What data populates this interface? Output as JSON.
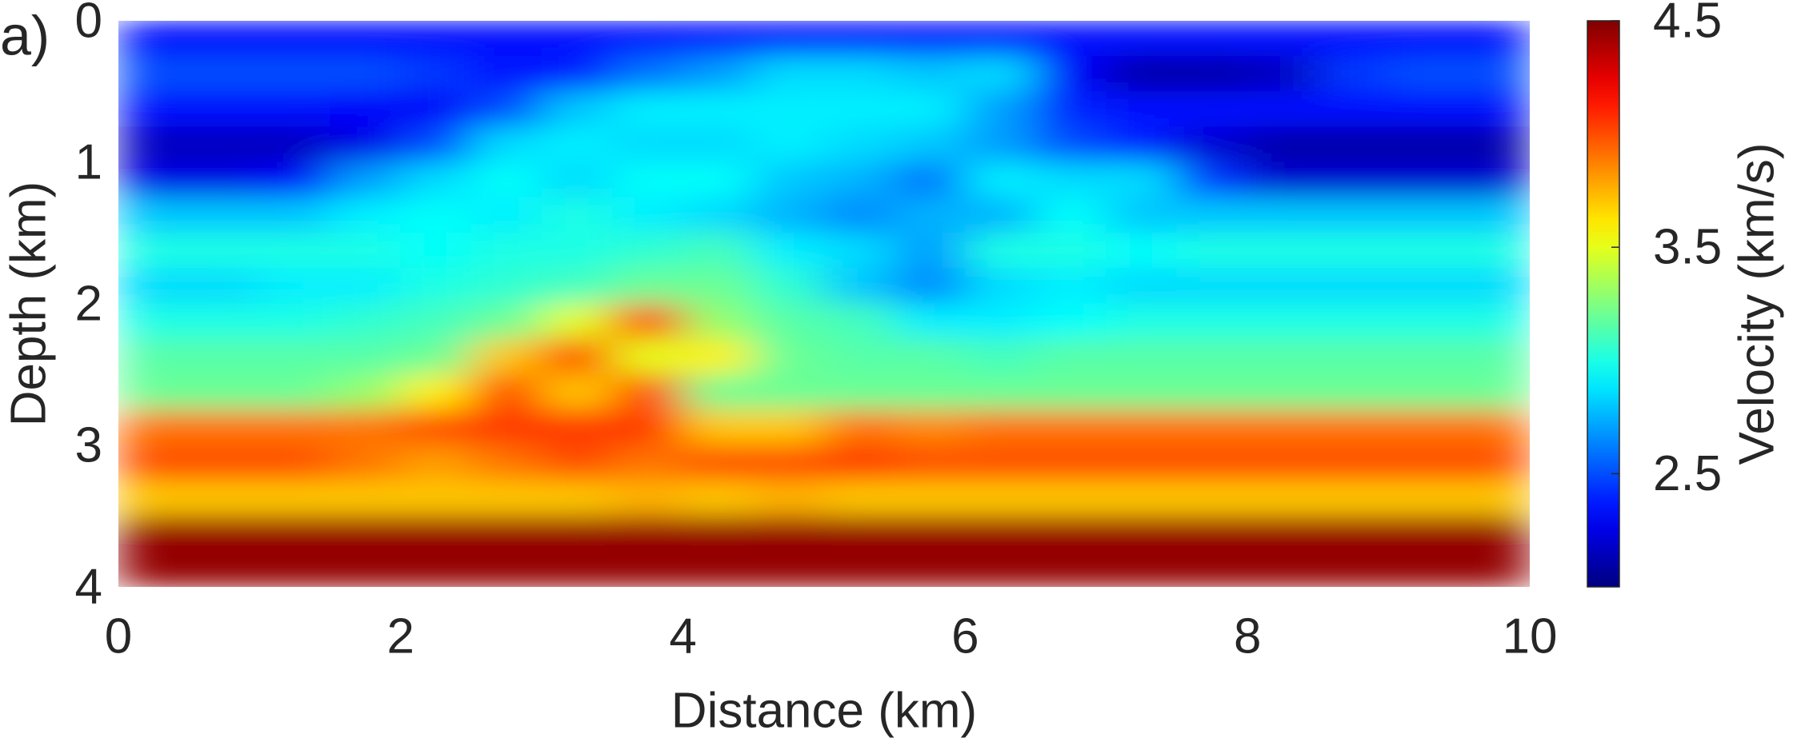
{
  "chart_data": {
    "type": "heatmap",
    "panel_label": "a)",
    "x_label": "Distance (km)",
    "y_label": "Depth (km)",
    "colorbar_label": "Velocity (km/s)",
    "colormap": "jet",
    "xlim": [
      0,
      10
    ],
    "xticks": [
      0,
      2,
      4,
      6,
      8,
      10
    ],
    "ylim": [
      0,
      4
    ],
    "yticks": [
      0,
      1,
      2,
      3,
      4
    ],
    "y_reversed": true,
    "clim": [
      2.0,
      4.5
    ],
    "cticks": [
      2.5,
      3.5,
      4.5
    ],
    "x": [
      0.25,
      0.75,
      1.25,
      1.75,
      2.25,
      2.75,
      3.25,
      3.75,
      4.25,
      4.75,
      5.25,
      5.75,
      6.25,
      6.75,
      7.25,
      7.75,
      8.25,
      8.75,
      9.25,
      9.75
    ],
    "y": [
      0.125,
      0.375,
      0.625,
      0.875,
      1.125,
      1.375,
      1.625,
      1.875,
      2.125,
      2.375,
      2.625,
      2.875,
      3.125,
      3.375,
      3.625,
      3.875
    ],
    "z": [
      [
        2.35,
        2.35,
        2.35,
        2.35,
        2.35,
        2.35,
        2.35,
        2.35,
        2.35,
        2.35,
        2.35,
        2.35,
        2.35,
        2.35,
        2.35,
        2.35,
        2.35,
        2.35,
        2.35,
        2.35
      ],
      [
        2.5,
        2.5,
        2.5,
        2.5,
        2.45,
        2.35,
        2.4,
        2.6,
        2.7,
        2.85,
        2.85,
        2.8,
        2.85,
        2.3,
        2.1,
        2.1,
        2.15,
        2.45,
        2.5,
        2.5
      ],
      [
        2.35,
        2.35,
        2.35,
        2.3,
        2.3,
        2.5,
        2.8,
        2.9,
        2.9,
        2.9,
        2.9,
        2.9,
        2.7,
        2.4,
        2.35,
        2.35,
        2.35,
        2.35,
        2.35,
        2.35
      ],
      [
        2.15,
        2.15,
        2.15,
        2.25,
        2.5,
        2.85,
        2.9,
        2.85,
        2.85,
        2.9,
        2.85,
        2.8,
        2.7,
        2.5,
        2.4,
        2.2,
        2.1,
        2.1,
        2.1,
        2.1
      ],
      [
        2.25,
        2.25,
        2.3,
        2.7,
        2.85,
        2.95,
        2.85,
        2.95,
        2.95,
        2.8,
        2.75,
        2.6,
        2.9,
        2.85,
        2.85,
        2.45,
        2.2,
        2.2,
        2.2,
        2.2
      ],
      [
        2.8,
        2.8,
        2.8,
        2.9,
        2.95,
        2.9,
        3.0,
        2.9,
        2.85,
        2.75,
        2.65,
        2.75,
        2.75,
        2.95,
        2.8,
        2.8,
        2.8,
        2.8,
        2.8,
        2.8
      ],
      [
        3.0,
        3.0,
        3.0,
        3.0,
        2.95,
        3.0,
        3.0,
        3.05,
        3.1,
        2.9,
        2.85,
        2.7,
        3.0,
        3.0,
        2.95,
        3.0,
        3.0,
        3.0,
        3.0,
        3.0
      ],
      [
        2.85,
        2.85,
        2.9,
        2.9,
        3.0,
        3.05,
        3.1,
        3.2,
        3.2,
        3.05,
        2.8,
        2.65,
        2.85,
        2.9,
        2.85,
        2.85,
        2.85,
        2.85,
        2.85,
        2.85
      ],
      [
        3.0,
        3.0,
        3.0,
        3.05,
        3.1,
        3.2,
        3.5,
        4.0,
        3.3,
        3.15,
        3.1,
        2.9,
        2.9,
        2.95,
        3.0,
        3.0,
        3.0,
        3.0,
        3.0,
        3.0
      ],
      [
        3.15,
        3.15,
        3.15,
        3.15,
        3.2,
        3.7,
        4.0,
        3.5,
        3.6,
        3.2,
        3.15,
        3.15,
        3.1,
        3.15,
        3.15,
        3.15,
        3.15,
        3.15,
        3.15,
        3.15
      ],
      [
        3.2,
        3.2,
        3.2,
        3.3,
        3.6,
        4.0,
        3.7,
        4.0,
        3.2,
        3.2,
        3.2,
        3.2,
        3.2,
        3.2,
        3.2,
        3.2,
        3.2,
        3.2,
        3.2,
        3.2
      ],
      [
        3.9,
        3.9,
        3.9,
        3.9,
        4.0,
        4.05,
        4.05,
        4.05,
        3.7,
        3.7,
        3.9,
        3.85,
        3.9,
        3.9,
        3.9,
        3.9,
        3.9,
        3.9,
        3.9,
        3.9
      ],
      [
        4.0,
        4.0,
        4.0,
        3.9,
        3.8,
        3.9,
        4.0,
        3.9,
        4.0,
        4.0,
        4.05,
        4.0,
        4.0,
        4.0,
        4.0,
        4.0,
        4.0,
        4.0,
        4.0,
        4.0
      ],
      [
        3.7,
        3.7,
        3.7,
        3.7,
        3.7,
        3.7,
        3.7,
        3.75,
        3.7,
        3.75,
        3.7,
        3.7,
        3.7,
        3.7,
        3.7,
        3.7,
        3.7,
        3.7,
        3.7,
        3.7
      ],
      [
        4.45,
        4.45,
        4.45,
        4.45,
        4.45,
        4.45,
        4.45,
        4.45,
        4.45,
        4.45,
        4.45,
        4.45,
        4.45,
        4.45,
        4.45,
        4.45,
        4.45,
        4.45,
        4.45,
        4.45
      ],
      [
        4.45,
        4.45,
        4.45,
        4.45,
        4.45,
        4.45,
        4.45,
        4.45,
        4.45,
        4.45,
        4.45,
        4.45,
        4.45,
        4.45,
        4.45,
        4.45,
        4.45,
        4.45,
        4.45,
        4.45
      ]
    ]
  }
}
